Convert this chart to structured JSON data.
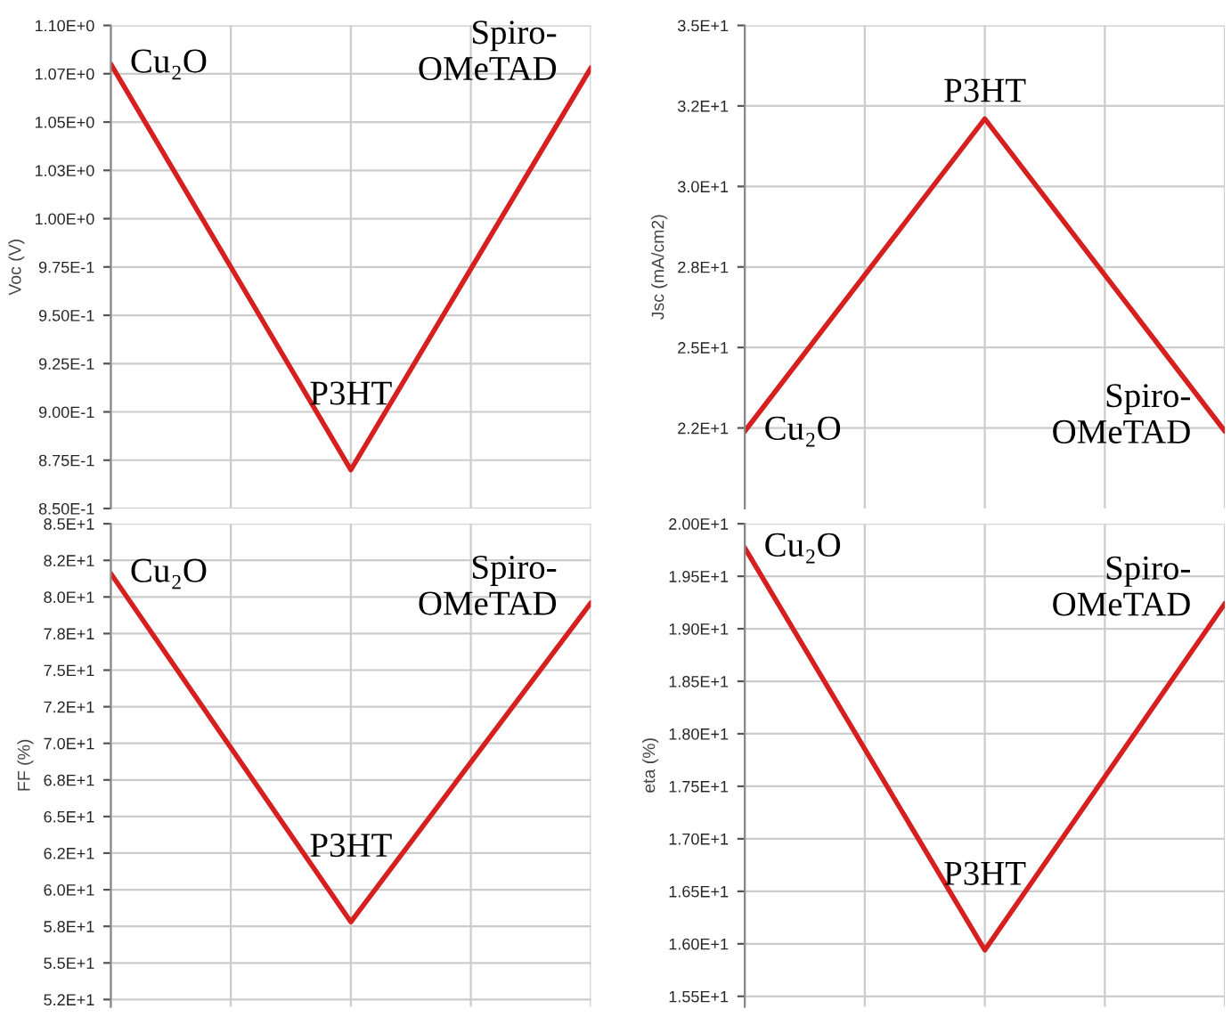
{
  "chart_data": [
    {
      "type": "line",
      "ylabel": "Voc (V)",
      "categories": [
        null,
        null,
        null
      ],
      "series": [
        {
          "color": "#d62020",
          "values": [
            1.08,
            0.87,
            1.078
          ]
        }
      ],
      "ylim": [
        0.85,
        1.1
      ],
      "yticks": [
        {
          "value": 0.85,
          "label": "8.50E-1"
        },
        {
          "value": 0.875,
          "label": "8.75E-1"
        },
        {
          "value": 0.9,
          "label": "9.00E-1"
        },
        {
          "value": 0.925,
          "label": "9.25E-1"
        },
        {
          "value": 0.95,
          "label": "9.50E-1"
        },
        {
          "value": 0.975,
          "label": "9.75E-1"
        },
        {
          "value": 1.0,
          "label": "1.00E+0"
        },
        {
          "value": 1.025,
          "label": "1.03E+0"
        },
        {
          "value": 1.05,
          "label": "1.05E+0"
        },
        {
          "value": 1.075,
          "label": "1.07E+0"
        },
        {
          "value": 1.1,
          "label": "1.10E+0"
        }
      ],
      "grid": true,
      "tick_labels": "y",
      "marker": "none",
      "line_style": "solid",
      "annotations": [
        "Cu₂O",
        "P3HT",
        "Spiro-\nOMeTAD"
      ]
    },
    {
      "type": "line",
      "ylabel": "Jsc (mA/cm2)",
      "categories": [
        null,
        null,
        null
      ],
      "series": [
        {
          "color": "#d62020",
          "values": [
            22.4,
            32.1,
            22.4
          ]
        }
      ],
      "ylim": [
        20,
        35
      ],
      "yticks": [
        {
          "value": 22.5,
          "label": "2.2E+1"
        },
        {
          "value": 25,
          "label": "2.5E+1"
        },
        {
          "value": 27.5,
          "label": "2.8E+1"
        },
        {
          "value": 30,
          "label": "3.0E+1"
        },
        {
          "value": 32.5,
          "label": "3.2E+1"
        },
        {
          "value": 35,
          "label": "3.5E+1"
        }
      ],
      "grid": true,
      "tick_labels": "y",
      "marker": "none",
      "line_style": "solid",
      "annotations": [
        "Cu₂O",
        "P3HT",
        "Spiro-\nOMeTAD"
      ]
    },
    {
      "type": "line",
      "ylabel": "FF (%)",
      "categories": [
        null,
        null,
        null
      ],
      "series": [
        {
          "color": "#d62020",
          "values": [
            81.6,
            57.8,
            79.6
          ]
        }
      ],
      "ylim": [
        52,
        85
      ],
      "yticks": [
        {
          "value": 52.5,
          "label": "5.2E+1"
        },
        {
          "value": 55,
          "label": "5.5E+1"
        },
        {
          "value": 57.5,
          "label": "5.8E+1"
        },
        {
          "value": 60,
          "label": "6.0E+1"
        },
        {
          "value": 62.5,
          "label": "6.2E+1"
        },
        {
          "value": 65,
          "label": "6.5E+1"
        },
        {
          "value": 67.5,
          "label": "6.8E+1"
        },
        {
          "value": 70,
          "label": "7.0E+1"
        },
        {
          "value": 72.5,
          "label": "7.2E+1"
        },
        {
          "value": 75,
          "label": "7.5E+1"
        },
        {
          "value": 77.5,
          "label": "7.8E+1"
        },
        {
          "value": 80,
          "label": "8.0E+1"
        },
        {
          "value": 82.5,
          "label": "8.2E+1"
        },
        {
          "value": 85,
          "label": "8.5E+1"
        }
      ],
      "grid": true,
      "tick_labels": "y",
      "marker": "none",
      "line_style": "solid",
      "annotations": [
        "Cu₂O",
        "P3HT",
        "Spiro-\nOMeTAD"
      ]
    },
    {
      "type": "line",
      "ylabel": "eta (%)",
      "categories": [
        null,
        null,
        null
      ],
      "series": [
        {
          "color": "#d62020",
          "values": [
            19.77,
            15.94,
            19.24
          ]
        }
      ],
      "ylim": [
        15.4,
        20
      ],
      "yticks": [
        {
          "value": 15.5,
          "label": "1.55E+1"
        },
        {
          "value": 16,
          "label": "1.60E+1"
        },
        {
          "value": 16.5,
          "label": "1.65E+1"
        },
        {
          "value": 17,
          "label": "1.70E+1"
        },
        {
          "value": 17.5,
          "label": "1.75E+1"
        },
        {
          "value": 18,
          "label": "1.80E+1"
        },
        {
          "value": 18.5,
          "label": "1.85E+1"
        },
        {
          "value": 19,
          "label": "1.90E+1"
        },
        {
          "value": 19.5,
          "label": "1.95E+1"
        },
        {
          "value": 20,
          "label": "2.00E+1"
        }
      ],
      "grid": true,
      "tick_labels": "y",
      "marker": "none",
      "line_style": "solid",
      "annotations": [
        "Cu₂O",
        "P3HT",
        "Spiro-\nOMeTAD"
      ]
    }
  ]
}
